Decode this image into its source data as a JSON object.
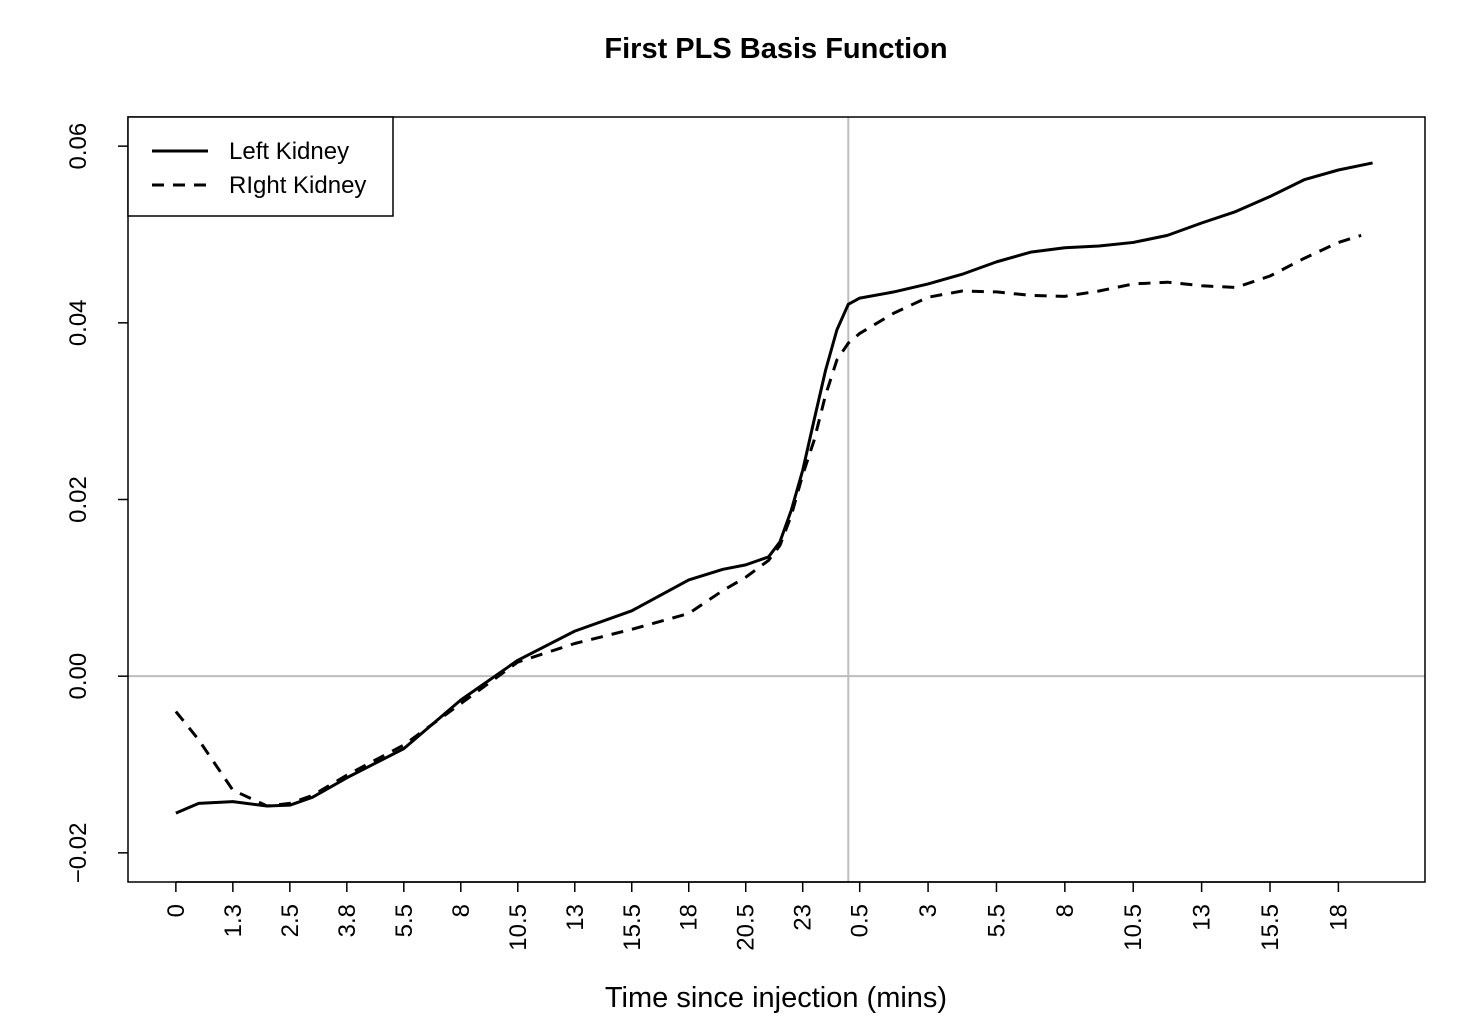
{
  "chart_data": {
    "type": "line",
    "title": "First PLS Basis Function",
    "x_label": "Time since injection (mins)",
    "xlim": [
      -4.2,
      109.6
    ],
    "ylim": [
      -0.0233,
      0.0633
    ],
    "xticks": [
      {
        "value": 0,
        "label": "0"
      },
      {
        "value": 5,
        "label": "1.3"
      },
      {
        "value": 10,
        "label": "2.5"
      },
      {
        "value": 15,
        "label": "3.8"
      },
      {
        "value": 20,
        "label": "5.5"
      },
      {
        "value": 25,
        "label": "8"
      },
      {
        "value": 30,
        "label": "10.5"
      },
      {
        "value": 35,
        "label": "13"
      },
      {
        "value": 40,
        "label": "15.5"
      },
      {
        "value": 45,
        "label": "18"
      },
      {
        "value": 50,
        "label": "20.5"
      },
      {
        "value": 55,
        "label": "23"
      },
      {
        "value": 60,
        "label": "0.5"
      },
      {
        "value": 66,
        "label": "3"
      },
      {
        "value": 72,
        "label": "5.5"
      },
      {
        "value": 78,
        "label": "8"
      },
      {
        "value": 84,
        "label": "10.5"
      },
      {
        "value": 90,
        "label": "13"
      },
      {
        "value": 96,
        "label": "15.5"
      },
      {
        "value": 102,
        "label": "18"
      }
    ],
    "yticks": [
      {
        "value": -0.02,
        "label": "−0.02"
      },
      {
        "value": 0,
        "label": "0.00"
      },
      0.02,
      0.04,
      0.06
    ],
    "hline": 0,
    "vline": 59,
    "reference_color": "#bdbdbd",
    "legend": "top-left",
    "series": [
      {
        "name": "Left Kidney",
        "color": "#000000",
        "linestyle": "solid",
        "x": [
          0,
          2,
          5,
          8,
          10,
          12,
          15,
          20,
          25,
          30,
          35,
          40,
          45,
          48,
          50,
          52,
          53,
          54,
          55,
          56,
          57,
          58,
          59,
          60,
          63,
          66,
          69,
          72,
          75,
          78,
          81,
          84,
          87,
          90,
          93,
          96,
          99,
          102,
          105
        ],
        "values": [
          -0.0155,
          -0.0144,
          -0.0142,
          -0.0147,
          -0.0146,
          -0.0137,
          -0.0115,
          -0.0082,
          -0.0027,
          0.0018,
          0.0051,
          0.0074,
          0.0109,
          0.0121,
          0.0126,
          0.0135,
          0.0152,
          0.0188,
          0.0233,
          0.029,
          0.0346,
          0.0392,
          0.0421,
          0.0428,
          0.0435,
          0.0444,
          0.0455,
          0.0469,
          0.048,
          0.0485,
          0.0487,
          0.0491,
          0.0499,
          0.0513,
          0.0526,
          0.0543,
          0.0562,
          0.0573,
          0.0581
        ]
      },
      {
        "name": "RIght Kidney",
        "color": "#000000",
        "linestyle": "dashed",
        "x": [
          0,
          2,
          5,
          8,
          10,
          12,
          15,
          20,
          25,
          30,
          35,
          40,
          45,
          48,
          50,
          52,
          53,
          54,
          55,
          56,
          57,
          58,
          59,
          60,
          63,
          66,
          69,
          72,
          75,
          78,
          81,
          84,
          87,
          90,
          93,
          96,
          99,
          102,
          104
        ],
        "values": [
          -0.004,
          -0.0072,
          -0.0129,
          -0.0147,
          -0.0144,
          -0.0135,
          -0.0112,
          -0.0078,
          -0.0031,
          0.0016,
          0.0037,
          0.0053,
          0.0071,
          0.0097,
          0.0112,
          0.0131,
          0.0148,
          0.0182,
          0.0228,
          0.0267,
          0.0318,
          0.0358,
          0.0377,
          0.0388,
          0.0411,
          0.0429,
          0.0436,
          0.0435,
          0.0431,
          0.043,
          0.0436,
          0.0444,
          0.0446,
          0.0442,
          0.044,
          0.0453,
          0.0473,
          0.0491,
          0.0499
        ]
      }
    ]
  }
}
